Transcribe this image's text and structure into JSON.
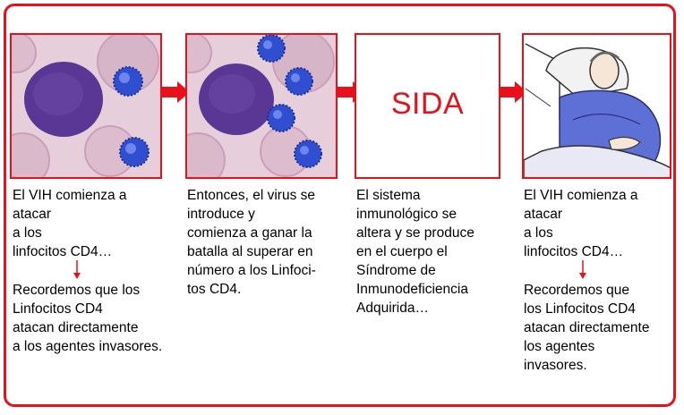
{
  "panels": [
    {
      "label": "",
      "caption_top": "El VIH comienza a\natacar\na los\nlinfocitos CD4…",
      "caption_bottom": "Recordemos que los\nLinfocitos CD4\natacan directamente\na los agentes invasores."
    },
    {
      "label": "",
      "caption_top": "Entonces, el virus se\nintroduce y\ncomienza a ganar la\nbatalla al superar en\nnúmero a los Linfoci-\ntos CD4.",
      "caption_bottom": ""
    },
    {
      "label": "SIDA",
      "caption_top": "El sistema\ninmunológico se\naltera y se produce\nen el cuerpo el\nSíndrome de\nInmunodeficiencia\nAdquirida…",
      "caption_bottom": ""
    },
    {
      "label": "",
      "caption_top": "El VIH comienza a\natacar\na los\nlinfocitos CD4…",
      "caption_bottom": "Recordemos que\nlos Linfocitos CD4\natacan directamente\nlos agentes\ninvasores."
    }
  ],
  "colors": {
    "accent": "#e8101a",
    "lymphocyte": "#4b2a86",
    "virus": "#2f4fd0"
  }
}
